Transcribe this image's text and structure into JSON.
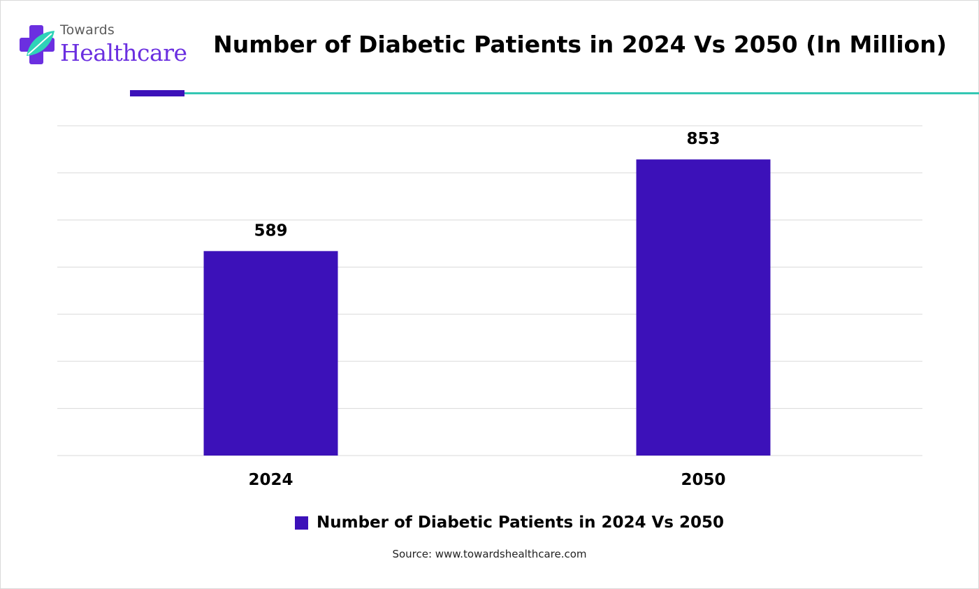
{
  "brand": {
    "top": "Towards",
    "bottom": "Healthcare"
  },
  "title": "Number of Diabetic Patients in 2024 Vs 2050 (In Million)",
  "legend_label": "Number of Diabetic Patients in 2024 Vs 2050",
  "source": "Source: www.towardshealthcare.com",
  "colors": {
    "bar": "#3c11b9",
    "accent": "#3c11b9",
    "rule": "#34c7b3",
    "grid": "#d9d9d9",
    "logo_text": "#6b2fe0"
  },
  "chart_data": {
    "type": "bar",
    "categories": [
      "2024",
      "2050"
    ],
    "series": [
      {
        "name": "Number of Diabetic Patients in 2024 Vs 2050",
        "values": [
          589,
          853
        ]
      }
    ],
    "ylim": [
      0,
      950
    ],
    "grid": true,
    "legend": "bottom",
    "data_labels": true,
    "xlabel": "",
    "ylabel": ""
  }
}
